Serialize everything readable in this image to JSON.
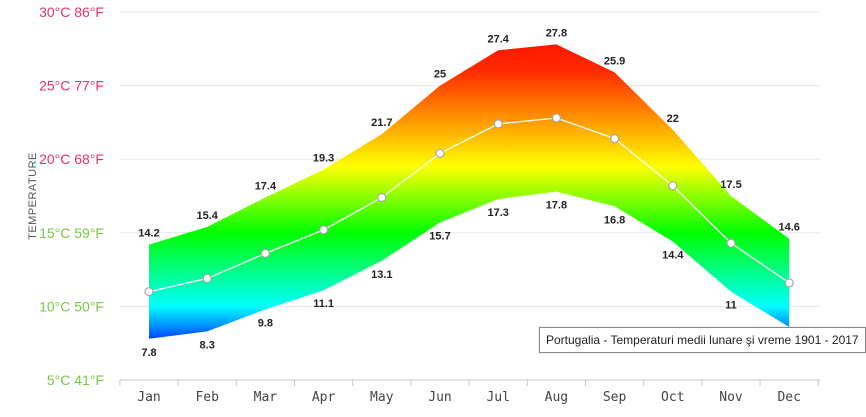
{
  "chart_data": {
    "type": "area",
    "categories": [
      "Jan",
      "Feb",
      "Mar",
      "Apr",
      "May",
      "Jun",
      "Jul",
      "Aug",
      "Sep",
      "Oct",
      "Nov",
      "Dec"
    ],
    "series": [
      {
        "values": [
          14.2,
          15.4,
          17.4,
          19.3,
          21.7,
          25,
          27.4,
          27.8,
          25.9,
          22,
          17.5,
          14.6
        ]
      },
      {
        "values": [
          7.8,
          8.3,
          9.8,
          11.1,
          13.1,
          15.7,
          17.3,
          17.8,
          16.8,
          14.4,
          11,
          8.6
        ]
      },
      {
        "values": [
          11,
          11.9,
          13.6,
          15.2,
          17.4,
          20.4,
          22.4,
          22.8,
          21.4,
          18.2,
          14.3,
          11.6
        ]
      }
    ],
    "high_labels": [
      "14.2",
      "15.4",
      "17.4",
      "19.3",
      "21.7",
      "25",
      "27.4",
      "27.8",
      "25.9",
      "22",
      "17.5",
      "14.6"
    ],
    "low_labels": [
      "7.8",
      "8.3",
      "9.8",
      "11.1",
      "13.1",
      "15.7",
      "17.3",
      "17.8",
      "16.8",
      "14.4",
      "11",
      ""
    ],
    "ylabel": "TEMPERATURE",
    "ylim": [
      5,
      30
    ],
    "y_ticks": [
      {
        "value": 30,
        "label": "30°C 86°F",
        "color": "#e8336a"
      },
      {
        "value": 25,
        "label": "25°C 77°F",
        "color": "#e8336a"
      },
      {
        "value": 20,
        "label": "20°C 68°F",
        "color": "#e8336a"
      },
      {
        "value": 15,
        "label": "15°C 59°F",
        "color": "#7ac943"
      },
      {
        "value": 10,
        "label": "10°C 50°F",
        "color": "#7ac943"
      },
      {
        "value": 5,
        "label": "5°C 41°F",
        "color": "#7ac943"
      }
    ],
    "grid": true,
    "band_gradient": [
      "#ff0000",
      "#ffff00",
      "#00ff00",
      "#00ffff",
      "#0000ff"
    ],
    "line_color": "#ffffff"
  },
  "tooltip": {
    "text": "Portugalia - Temperaturi medii lunare şi vreme 1901 - 2017"
  }
}
